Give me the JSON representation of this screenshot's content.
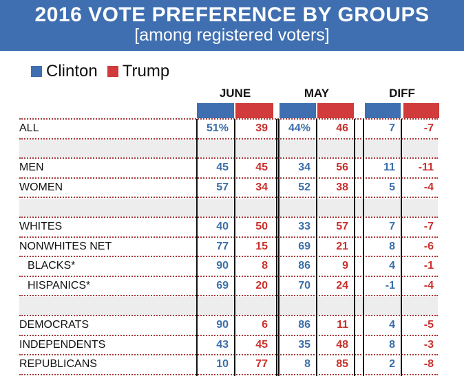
{
  "title": "2016 VOTE PREFERENCE BY GROUPS",
  "subtitle": "[among registered voters]",
  "legend": [
    {
      "label": "Clinton",
      "color": "#3f6fb0"
    },
    {
      "label": "Trump",
      "color": "#d13b3b"
    }
  ],
  "colors": {
    "clinton": "#3a6ea9",
    "trump": "#c9302c",
    "banner": "#3f6fb0"
  },
  "chart_data": {
    "type": "table",
    "title": "2016 VOTE PREFERENCE BY GROUPS",
    "subtitle": "[among registered voters]",
    "column_groups": [
      "JUNE",
      "MAY",
      "DIFF"
    ],
    "series": [
      "Clinton",
      "Trump"
    ],
    "rows": [
      {
        "label": "ALL",
        "indent": false,
        "values": [
          "51%",
          "39",
          "44%",
          "46",
          "7",
          "-7"
        ]
      },
      {
        "spacer": true
      },
      {
        "label": "MEN",
        "indent": false,
        "values": [
          "45",
          "45",
          "34",
          "56",
          "11",
          "-11"
        ]
      },
      {
        "label": "WOMEN",
        "indent": false,
        "values": [
          "57",
          "34",
          "52",
          "38",
          "5",
          "-4"
        ]
      },
      {
        "spacer": true
      },
      {
        "label": "WHITES",
        "indent": false,
        "values": [
          "40",
          "50",
          "33",
          "57",
          "7",
          "-7"
        ]
      },
      {
        "label": "NONWHITES NET",
        "indent": false,
        "values": [
          "77",
          "15",
          "69",
          "21",
          "8",
          "-6"
        ]
      },
      {
        "label": "BLACKS*",
        "indent": true,
        "values": [
          "90",
          "8",
          "86",
          "9",
          "4",
          "-1"
        ]
      },
      {
        "label": "HISPANICS*",
        "indent": true,
        "values": [
          "69",
          "20",
          "70",
          "24",
          "-1",
          "-4"
        ]
      },
      {
        "spacer": true
      },
      {
        "label": "DEMOCRATS",
        "indent": false,
        "values": [
          "90",
          "6",
          "86",
          "11",
          "4",
          "-5"
        ]
      },
      {
        "label": "INDEPENDENTS",
        "indent": false,
        "values": [
          "43",
          "45",
          "35",
          "48",
          "8",
          "-3"
        ]
      },
      {
        "label": "REPUBLICANS",
        "indent": false,
        "values": [
          "10",
          "77",
          "8",
          "85",
          "2",
          "-8"
        ]
      }
    ]
  }
}
